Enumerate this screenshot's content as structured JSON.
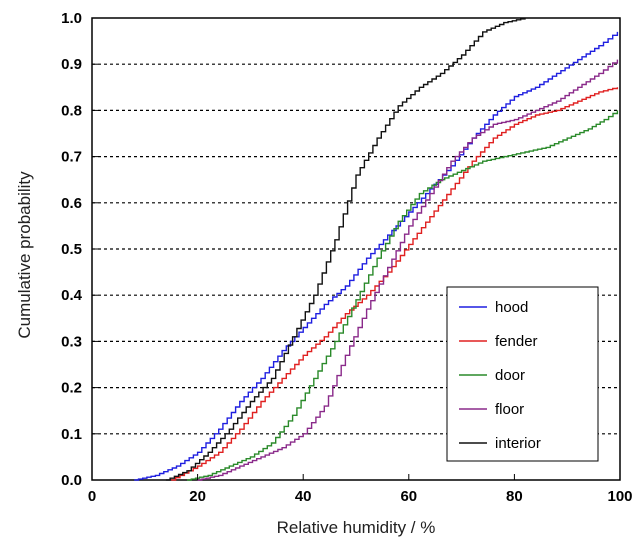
{
  "chart_data": {
    "type": "line",
    "step": true,
    "xlabel": "Relative humidity / %",
    "ylabel": "Cumulative probability",
    "xlim": [
      0,
      100
    ],
    "ylim": [
      0,
      1
    ],
    "xticks": [
      0,
      20,
      40,
      60,
      80,
      100
    ],
    "xtick_labels": [
      "0",
      "20",
      "40",
      "60",
      "80",
      "100"
    ],
    "yticks": [
      0,
      0.1,
      0.2,
      0.3,
      0.4,
      0.5,
      0.6,
      0.7,
      0.8,
      0.9,
      1.0
    ],
    "ytick_labels": [
      "0.0",
      "0.1",
      "0.2",
      "0.3",
      "0.4",
      "0.5",
      "0.6",
      "0.7",
      "0.8",
      "0.9",
      "1.0"
    ],
    "grid": "horizontal dotted",
    "legend_position": "bottom-right",
    "series": [
      {
        "name": "hood",
        "color": "#1f1fe0",
        "x": [
          8,
          12,
          16,
          20,
          24,
          28,
          32,
          36,
          40,
          44,
          48,
          52,
          56,
          60,
          64,
          68,
          72,
          76,
          80,
          84,
          88,
          92,
          96,
          99.5
        ],
        "y": [
          0,
          0.01,
          0.03,
          0.06,
          0.11,
          0.17,
          0.22,
          0.28,
          0.33,
          0.38,
          0.42,
          0.48,
          0.53,
          0.58,
          0.63,
          0.68,
          0.74,
          0.79,
          0.83,
          0.85,
          0.88,
          0.91,
          0.94,
          0.97
        ]
      },
      {
        "name": "fender",
        "color": "#e02020",
        "x": [
          15,
          20,
          24,
          28,
          32,
          36,
          40,
          44,
          48,
          52,
          56,
          60,
          64,
          68,
          72,
          76,
          80,
          84,
          88,
          92,
          96,
          99.5
        ],
        "y": [
          0,
          0.03,
          0.06,
          0.11,
          0.17,
          0.22,
          0.27,
          0.31,
          0.36,
          0.4,
          0.45,
          0.51,
          0.57,
          0.63,
          0.69,
          0.74,
          0.77,
          0.79,
          0.8,
          0.82,
          0.84,
          0.85
        ]
      },
      {
        "name": "door",
        "color": "#2a8a2a",
        "x": [
          18,
          22,
          26,
          30,
          34,
          38,
          42,
          46,
          50,
          54,
          58,
          62,
          66,
          70,
          74,
          78,
          82,
          86,
          90,
          94,
          97,
          99.5
        ],
        "y": [
          0,
          0.01,
          0.03,
          0.05,
          0.08,
          0.14,
          0.22,
          0.3,
          0.39,
          0.48,
          0.56,
          0.62,
          0.65,
          0.67,
          0.69,
          0.7,
          0.71,
          0.72,
          0.74,
          0.76,
          0.78,
          0.8
        ]
      },
      {
        "name": "floor",
        "color": "#8a2a8a",
        "x": [
          20,
          24,
          28,
          32,
          36,
          40,
          44,
          48,
          52,
          56,
          60,
          64,
          68,
          72,
          76,
          80,
          84,
          88,
          92,
          96,
          99.5
        ],
        "y": [
          0,
          0.01,
          0.03,
          0.05,
          0.07,
          0.1,
          0.16,
          0.27,
          0.37,
          0.46,
          0.55,
          0.62,
          0.69,
          0.74,
          0.77,
          0.78,
          0.8,
          0.82,
          0.85,
          0.88,
          0.91
        ]
      },
      {
        "name": "interior",
        "color": "#111111",
        "x": [
          14,
          18,
          22,
          26,
          30,
          34,
          38,
          42,
          46,
          50,
          54,
          58,
          62,
          66,
          70,
          74,
          78,
          82
        ],
        "y": [
          0,
          0.02,
          0.06,
          0.11,
          0.17,
          0.22,
          0.31,
          0.4,
          0.52,
          0.66,
          0.74,
          0.81,
          0.85,
          0.88,
          0.92,
          0.97,
          0.99,
          1.0
        ]
      }
    ]
  }
}
